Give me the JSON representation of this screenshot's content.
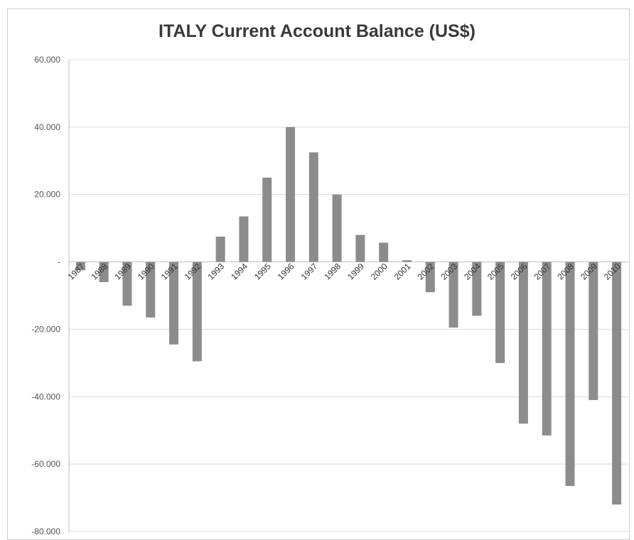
{
  "chart_data": {
    "type": "bar",
    "title": "ITALY Current Account Balance (US$)",
    "xlabel": "",
    "ylabel": "",
    "ylim": [
      -80000,
      60000
    ],
    "yticks": [
      60000,
      40000,
      20000,
      0,
      -20000,
      -40000,
      -60000,
      -80000
    ],
    "ytick_labels": [
      "60.000",
      "40.000",
      "20.000",
      "-",
      "-20.000",
      "-40.000",
      "-60.000",
      "-80.000"
    ],
    "grid": true,
    "colors": {
      "bar": "#8c8c8c",
      "grid": "#d9d9d9",
      "axis": "#bfbfbf"
    },
    "categories": [
      "1987",
      "1988",
      "1989",
      "1990",
      "1991",
      "1992",
      "1993",
      "1994",
      "1995",
      "1996",
      "1997",
      "1998",
      "1999",
      "2000",
      "2001",
      "2002",
      "2003",
      "2004",
      "2005",
      "2006",
      "2007",
      "2008",
      "2009",
      "2010"
    ],
    "values": [
      -2500,
      -6000,
      -13000,
      -16500,
      -24500,
      -29500,
      7500,
      13500,
      25000,
      40000,
      32500,
      20000,
      8000,
      5700,
      500,
      -9000,
      -19500,
      -16000,
      -30000,
      -48000,
      -51500,
      -66500,
      -41000,
      -72000
    ]
  }
}
